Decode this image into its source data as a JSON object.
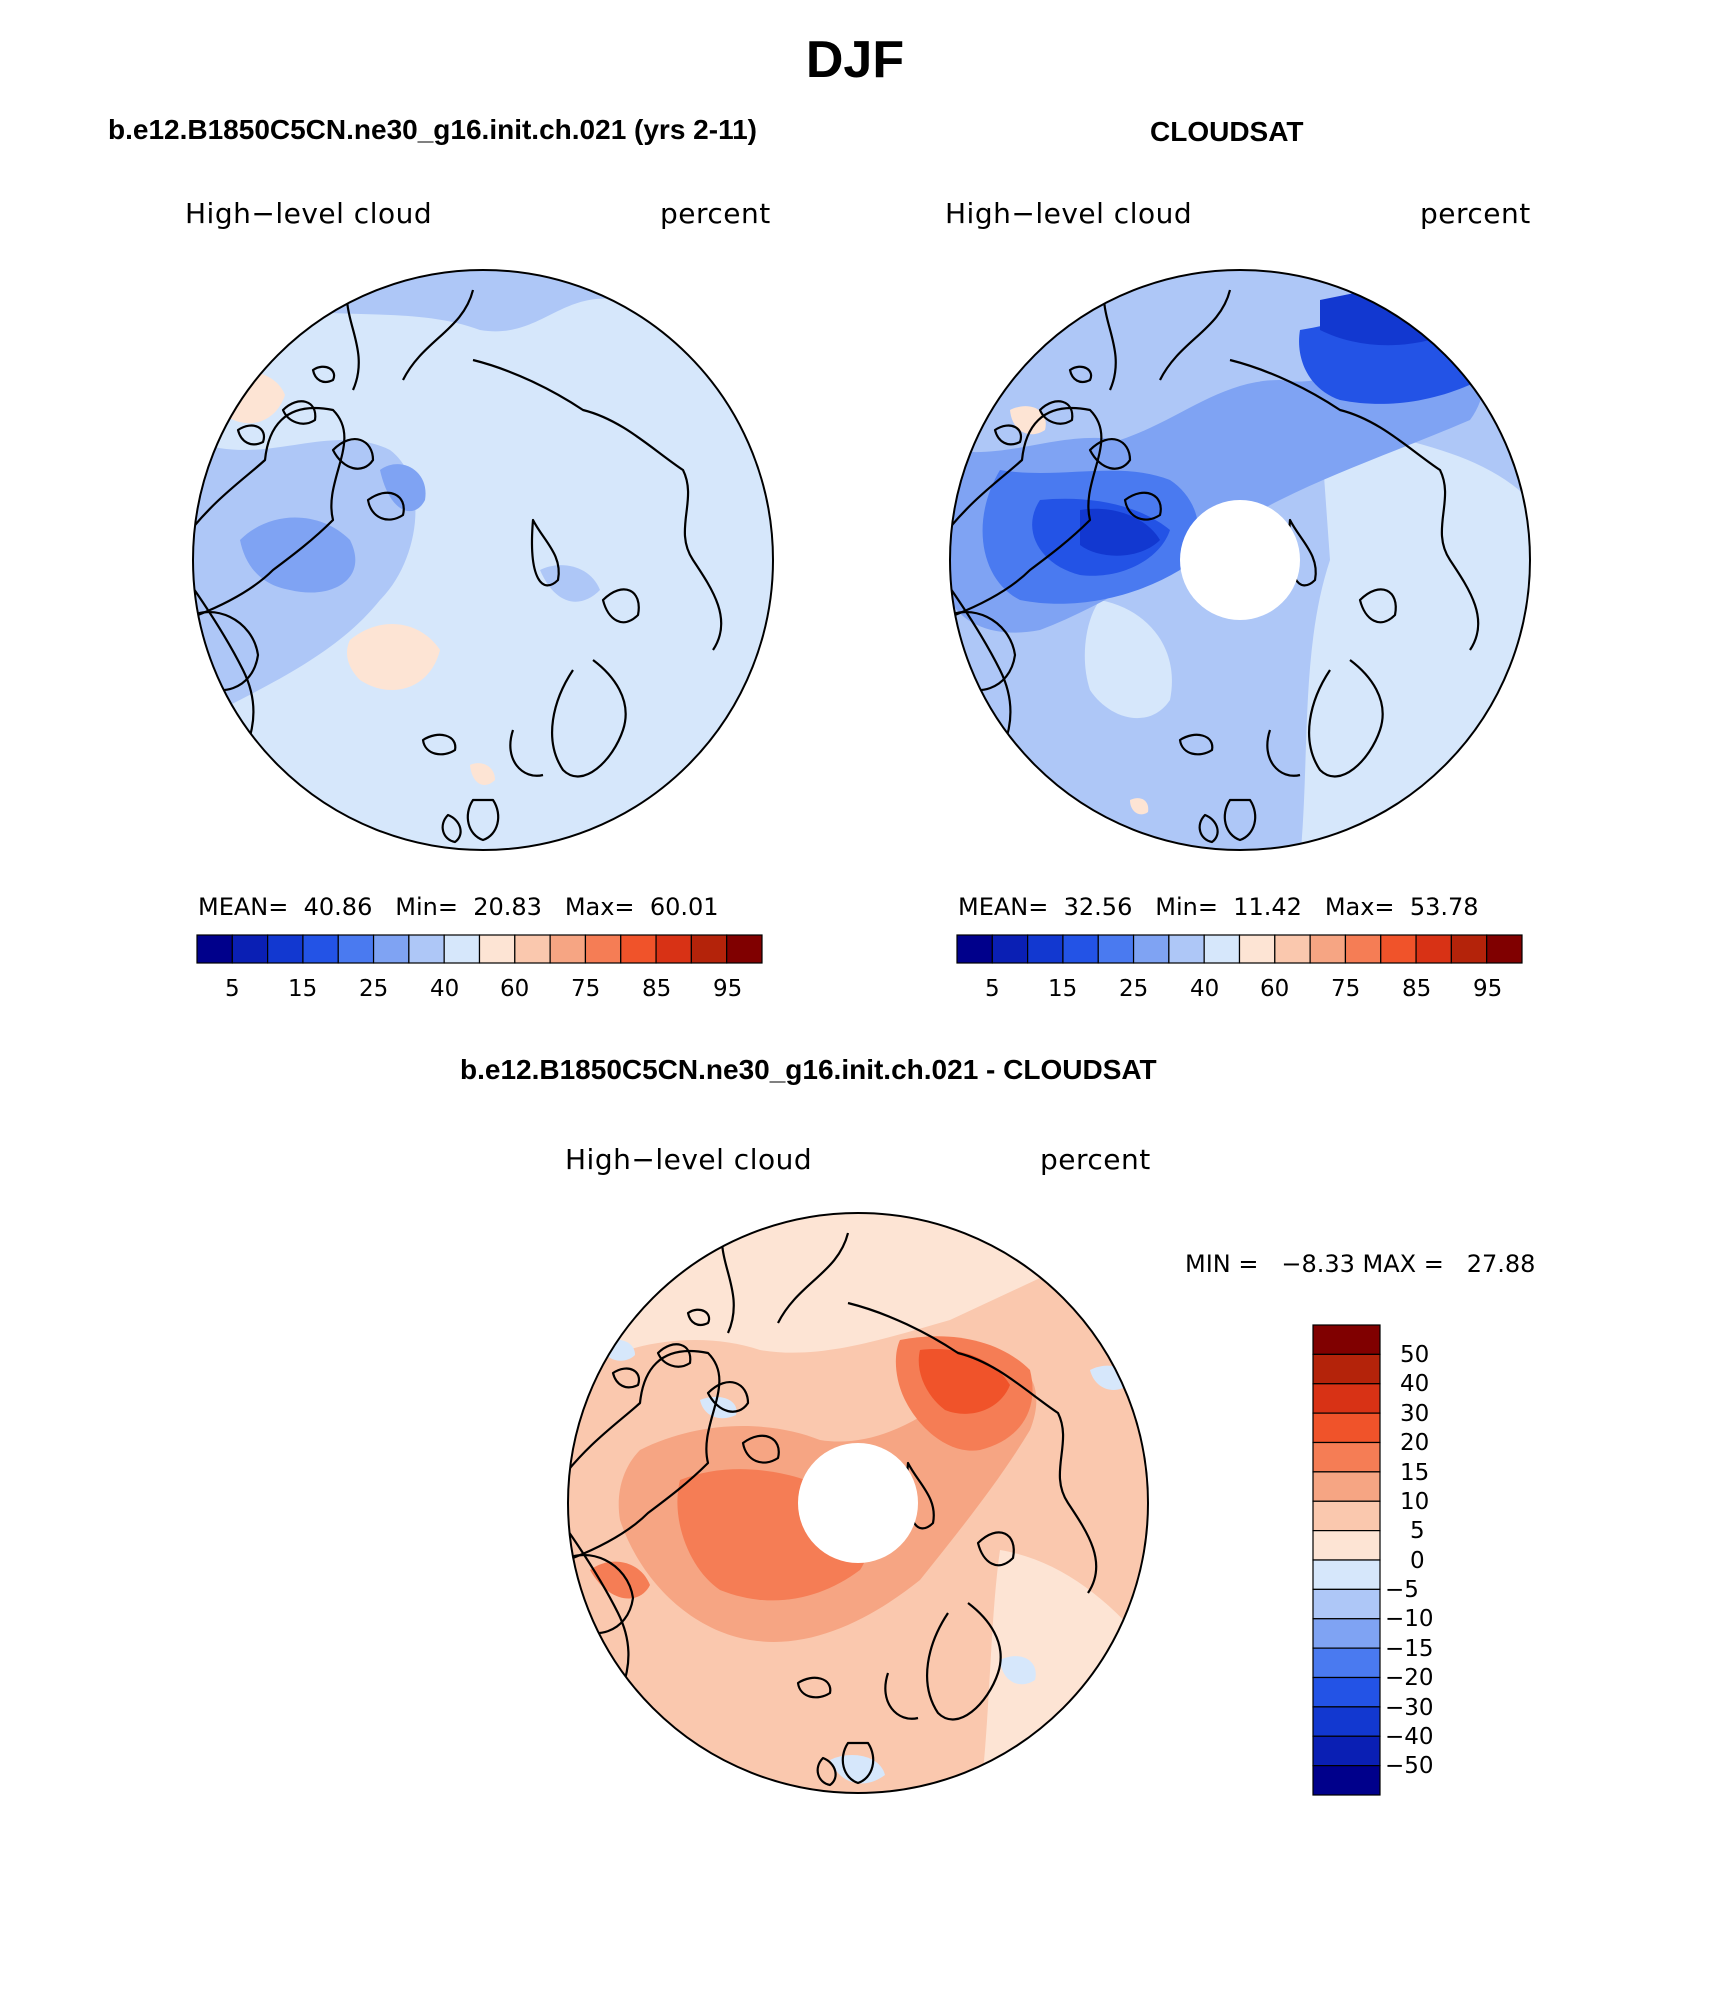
{
  "header": {
    "title": "DJF"
  },
  "panels": [
    {
      "title": "b.e12.B1850C5CN.ne30_g16.init.ch.021 (yrs 2-11)",
      "variable": "High−level cloud",
      "units": "percent",
      "stats": {
        "mean_label": "MEAN=",
        "mean": "40.86",
        "min_label": "Min=",
        "min": "20.83",
        "max_label": "Max=",
        "max": "60.01"
      }
    },
    {
      "title": "CLOUDSAT",
      "variable": "High−level cloud",
      "units": "percent",
      "stats": {
        "mean_label": "MEAN=",
        "mean": "32.56",
        "min_label": "Min=",
        "min": "11.42",
        "max_label": "Max=",
        "max": "53.78"
      }
    }
  ],
  "diff_panel": {
    "title": "b.e12.B1850C5CN.ne30_g16.init.ch.021 - CLOUDSAT",
    "variable": "High−level cloud",
    "units": "percent",
    "stats": "MIN =   −8.33 MAX =   27.88"
  },
  "colorbar_horizontal": {
    "colors": [
      "#00008b",
      "#0a1fb4",
      "#1238d0",
      "#2353e6",
      "#4a7af0",
      "#7fa3f3",
      "#aec7f7",
      "#d6e7fb",
      "#fde4d4",
      "#fac8ae",
      "#f6a583",
      "#f57d55",
      "#f0532a",
      "#d83215",
      "#b4230a",
      "#800000"
    ],
    "tick_labels": [
      "5",
      "15",
      "25",
      "40",
      "60",
      "75",
      "85",
      "95"
    ]
  },
  "colorbar_vertical": {
    "colors_top_to_bottom": [
      "#800000",
      "#b4230a",
      "#d83215",
      "#f0532a",
      "#f57d55",
      "#f6a583",
      "#fac8ae",
      "#fde4d4",
      "#d6e7fb",
      "#aec7f7",
      "#7fa3f3",
      "#4a7af0",
      "#2353e6",
      "#1238d0",
      "#0a1fb4",
      "#00008b"
    ],
    "tick_labels": [
      "50",
      "40",
      "30",
      "20",
      "15",
      "10",
      "5",
      "0",
      "−5",
      "−10",
      "−15",
      "−20",
      "−30",
      "−40",
      "−50"
    ]
  }
}
